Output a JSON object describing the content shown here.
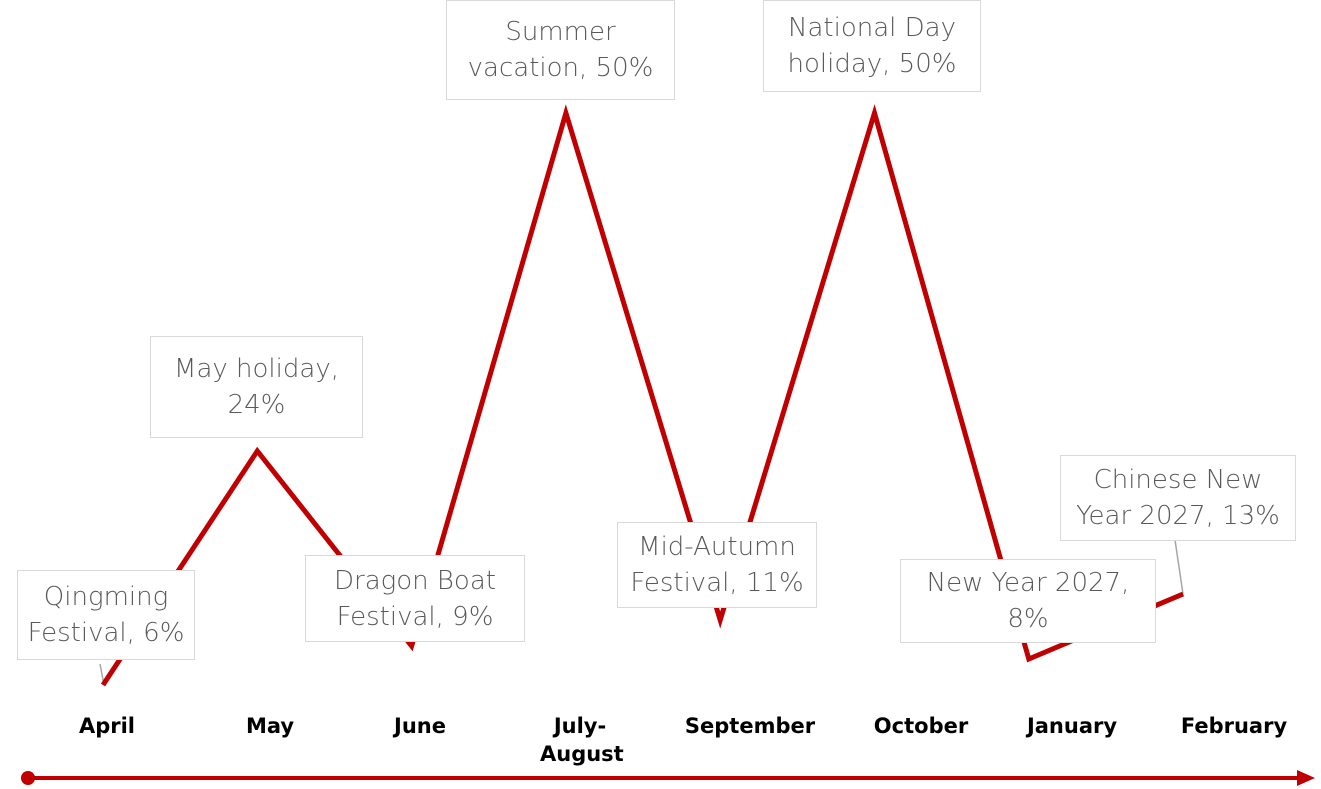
{
  "chart_data": {
    "type": "line",
    "categories": [
      "April",
      "May",
      "June",
      "July-August",
      "September",
      "October",
      "January",
      "February"
    ],
    "values": [
      6,
      24,
      9,
      50,
      11,
      50,
      8,
      13
    ],
    "value_labels": [
      "Qingming Festival, 6%",
      "May holiday, 24%",
      "Dragon Boat Festival, 9%",
      "Summer vacation, 50%",
      "Mid-Autumn Festival, 11%",
      "National Day holiday, 50%",
      "New Year 2027, 8%",
      "Chinese New Year 2027, 13%"
    ],
    "color": "#c00000"
  }
}
